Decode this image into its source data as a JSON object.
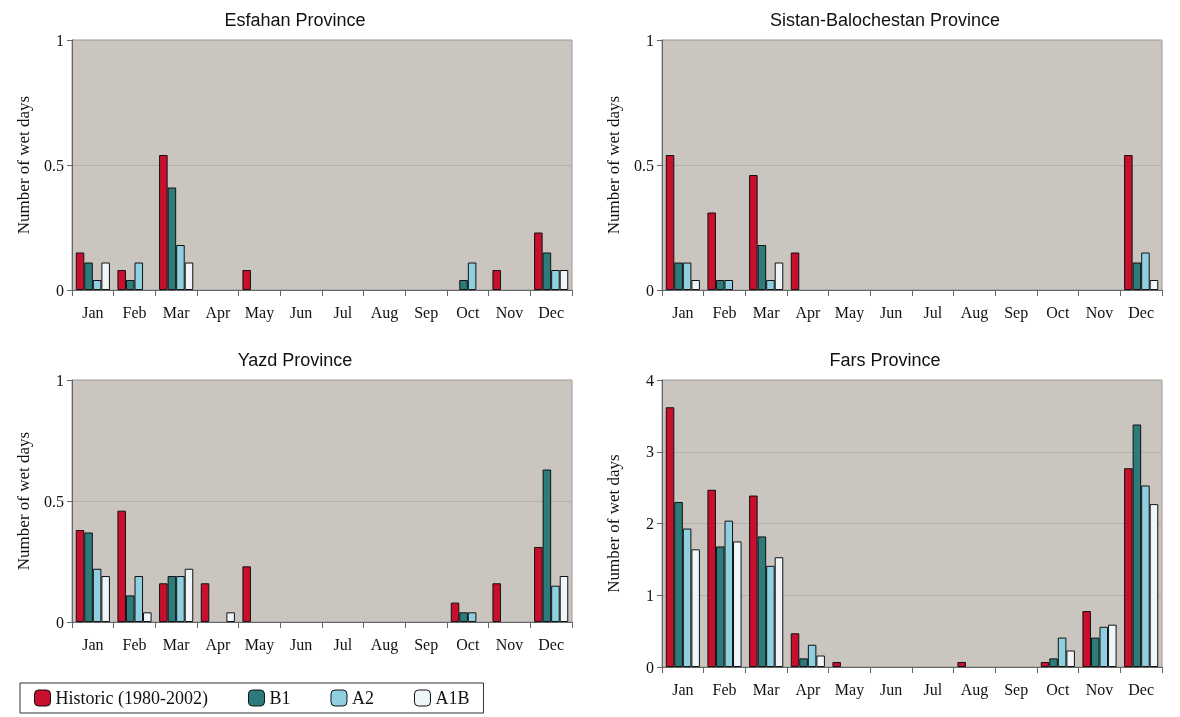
{
  "chart_data": [
    {
      "type": "bar",
      "title": "Esfahan Province",
      "ylabel": "Number of wet days",
      "categories": [
        "Jan",
        "Feb",
        "Mar",
        "Apr",
        "May",
        "Jun",
        "Jul",
        "Aug",
        "Sep",
        "Oct",
        "Nov",
        "Dec"
      ],
      "ylim": [
        0,
        1
      ],
      "yticks": [
        0,
        0.5,
        1
      ],
      "grid": "y",
      "legend": false,
      "series": [
        {
          "color": "#c8102e",
          "values": [
            0.15,
            0.08,
            0.54,
            0,
            0.08,
            0,
            0,
            0,
            0,
            0,
            0.08,
            0.23
          ]
        },
        {
          "color": "#2e7b7b",
          "values": [
            0.11,
            0.04,
            0.41,
            0,
            0,
            0,
            0,
            0,
            0,
            0.04,
            0,
            0.15
          ]
        },
        {
          "color": "#8ecfe0",
          "values": [
            0.04,
            0.11,
            0.18,
            0,
            0,
            0,
            0,
            0,
            0,
            0.11,
            0,
            0.08
          ]
        },
        {
          "color": "#eef6fa",
          "values": [
            0.11,
            0,
            0.11,
            0,
            0,
            0,
            0,
            0,
            0,
            0,
            0,
            0.08
          ]
        }
      ]
    },
    {
      "type": "bar",
      "title": "Sistan-Balochestan Province",
      "ylabel": "Number of wet days",
      "categories": [
        "Jan",
        "Feb",
        "Mar",
        "Apr",
        "May",
        "Jun",
        "Jul",
        "Aug",
        "Sep",
        "Oct",
        "Nov",
        "Dec"
      ],
      "ylim": [
        0,
        1
      ],
      "yticks": [
        0,
        0.5,
        1
      ],
      "grid": "y",
      "legend": false,
      "series": [
        {
          "color": "#c8102e",
          "values": [
            0.54,
            0.31,
            0.46,
            0.15,
            0,
            0,
            0,
            0,
            0,
            0,
            0,
            0.54
          ]
        },
        {
          "color": "#2e7b7b",
          "values": [
            0.11,
            0.04,
            0.18,
            0,
            0,
            0,
            0,
            0,
            0,
            0,
            0,
            0.11
          ]
        },
        {
          "color": "#8ecfe0",
          "values": [
            0.11,
            0.04,
            0.04,
            0,
            0,
            0,
            0,
            0,
            0,
            0,
            0,
            0.15
          ]
        },
        {
          "color": "#eef6fa",
          "values": [
            0.04,
            0,
            0.11,
            0,
            0,
            0,
            0,
            0,
            0,
            0,
            0,
            0.04
          ]
        }
      ]
    },
    {
      "type": "bar",
      "title": "Yazd Province",
      "ylabel": "Number of wet days",
      "categories": [
        "Jan",
        "Feb",
        "Mar",
        "Apr",
        "May",
        "Jun",
        "Jul",
        "Aug",
        "Sep",
        "Oct",
        "Nov",
        "Dec"
      ],
      "ylim": [
        0,
        1
      ],
      "yticks": [
        0,
        0.5,
        1
      ],
      "grid": "y",
      "legend": "bottom",
      "series": [
        {
          "name": "Historic (1980-2002)",
          "color": "#c8102e",
          "values": [
            0.38,
            0.46,
            0.16,
            0.16,
            0.23,
            0,
            0,
            0,
            0,
            0.08,
            0.16,
            0.31
          ]
        },
        {
          "name": "B1",
          "color": "#2e7b7b",
          "values": [
            0.37,
            0.11,
            0.19,
            0,
            0,
            0,
            0,
            0,
            0,
            0.04,
            0,
            0.63
          ]
        },
        {
          "name": "A2",
          "color": "#8ecfe0",
          "values": [
            0.22,
            0.19,
            0.19,
            0,
            0,
            0,
            0,
            0,
            0,
            0.04,
            0,
            0.15
          ]
        },
        {
          "name": "A1B",
          "color": "#eef6fa",
          "values": [
            0.19,
            0.04,
            0.22,
            0.04,
            0,
            0,
            0,
            0,
            0,
            0,
            0,
            0.19
          ]
        }
      ]
    },
    {
      "type": "bar",
      "title": "Fars Province",
      "ylabel": "Number of wet days",
      "categories": [
        "Jan",
        "Feb",
        "Mar",
        "Apr",
        "May",
        "Jun",
        "Jul",
        "Aug",
        "Sep",
        "Oct",
        "Nov",
        "Dec"
      ],
      "ylim": [
        0,
        4
      ],
      "yticks": [
        0,
        1,
        2,
        3,
        4
      ],
      "grid": "y",
      "legend": false,
      "series": [
        {
          "color": "#c8102e",
          "values": [
            3.62,
            2.47,
            2.39,
            0.47,
            0.07,
            0,
            0,
            0.07,
            0,
            0.07,
            0.78,
            2.77
          ]
        },
        {
          "color": "#2e7b7b",
          "values": [
            2.3,
            1.68,
            1.82,
            0.12,
            0,
            0,
            0,
            0,
            0,
            0.12,
            0.41,
            3.38
          ]
        },
        {
          "color": "#8ecfe0",
          "values": [
            1.93,
            2.04,
            1.41,
            0.31,
            0,
            0,
            0,
            0,
            0,
            0.41,
            0.56,
            2.53
          ]
        },
        {
          "color": "#eef6fa",
          "values": [
            1.64,
            1.75,
            1.53,
            0.16,
            0,
            0,
            0,
            0,
            0,
            0.23,
            0.59,
            2.27
          ]
        }
      ]
    }
  ]
}
